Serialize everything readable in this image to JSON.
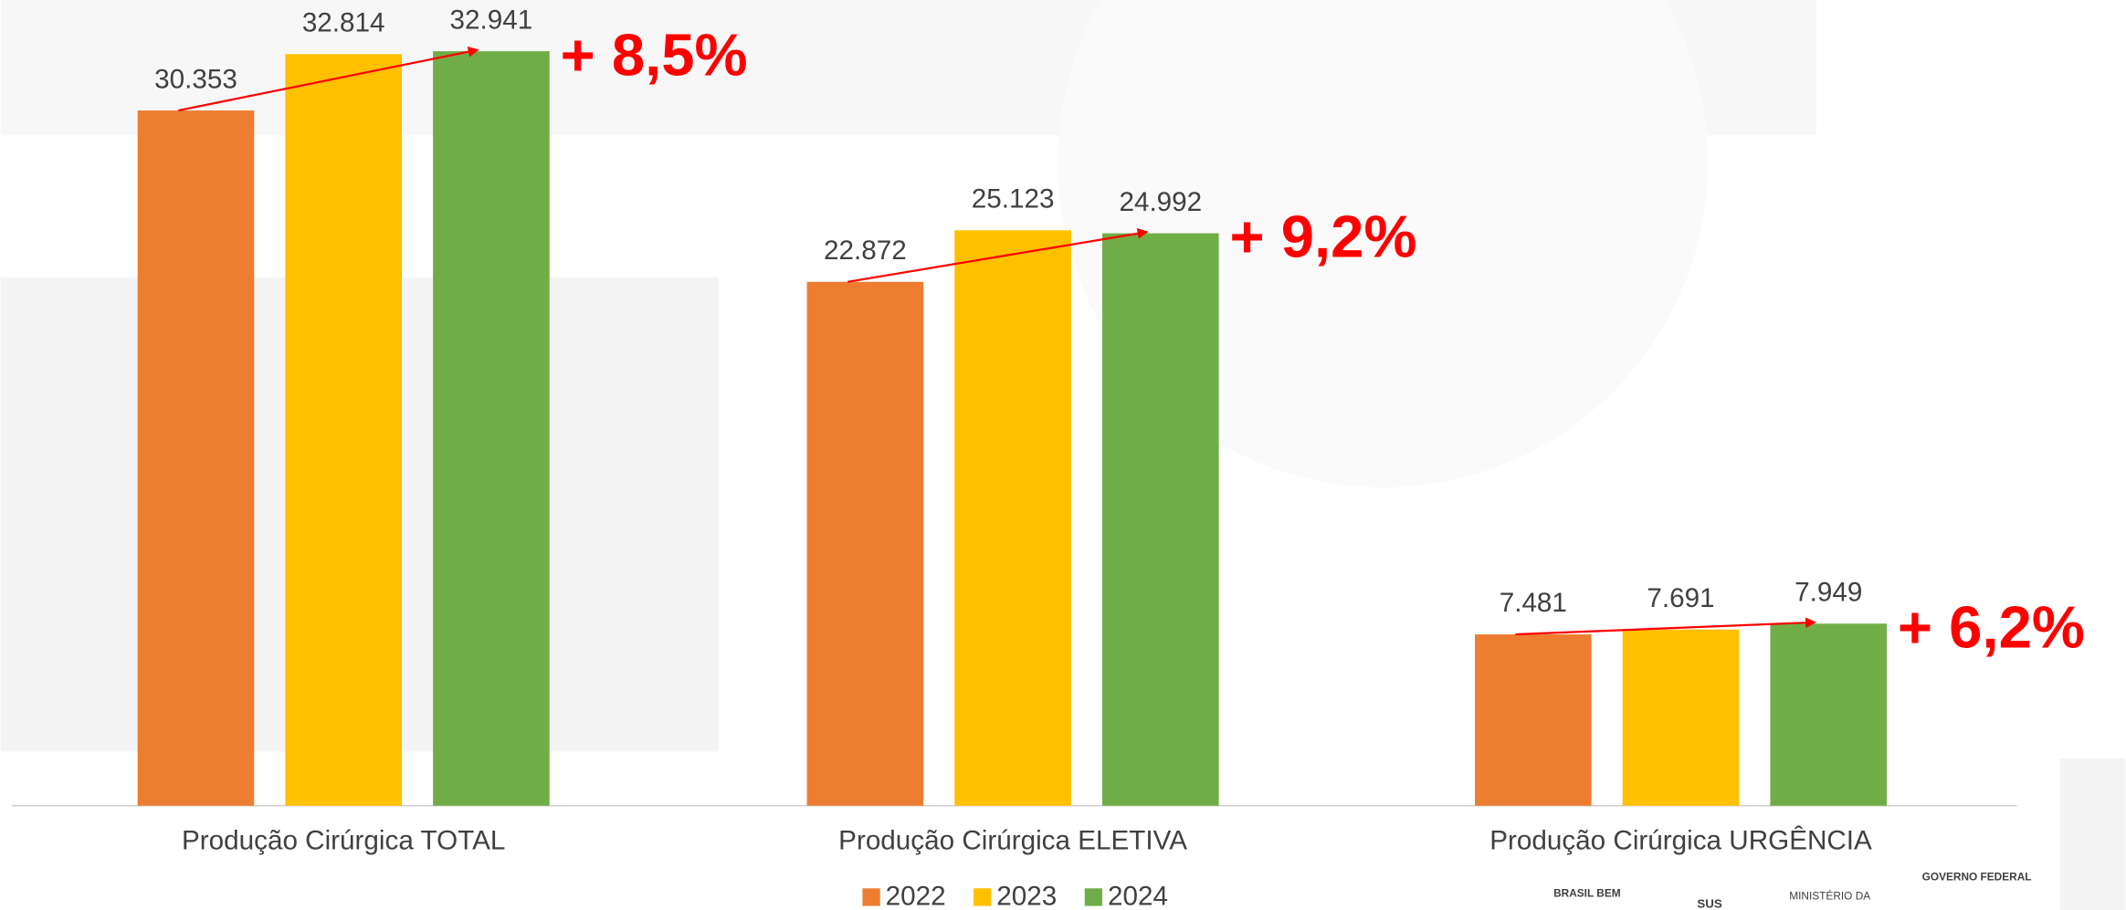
{
  "chart_data": {
    "type": "bar",
    "categories": [
      "Produção Cirúrgica TOTAL",
      "Produção Cirúrgica ELETIVA",
      "Produção Cirúrgica URGÊNCIA"
    ],
    "series": [
      {
        "name": "2022",
        "color": "#ed7d31",
        "values": [
          30353,
          22872,
          7481
        ],
        "value_labels": [
          "30.353",
          "22.872",
          "7.481"
        ]
      },
      {
        "name": "2023",
        "color": "#ffc000",
        "values": [
          32814,
          25123,
          7691
        ],
        "value_labels": [
          "32.814",
          "25.123",
          "7.691"
        ]
      },
      {
        "name": "2024",
        "color": "#70ad47",
        "values": [
          32941,
          24992,
          7949
        ],
        "value_labels": [
          "32.941",
          "24.992",
          "7.949"
        ]
      }
    ],
    "annotations": [
      "+ 8,5%",
      "+ 9,2%",
      "+ 6,2%"
    ],
    "ylim": [
      0,
      35000
    ],
    "legend": "bottom"
  },
  "logos": [
    "BRASIL BEM",
    "SUS",
    "MINISTÉRIO DA",
    "GOVERNO FEDERAL"
  ]
}
